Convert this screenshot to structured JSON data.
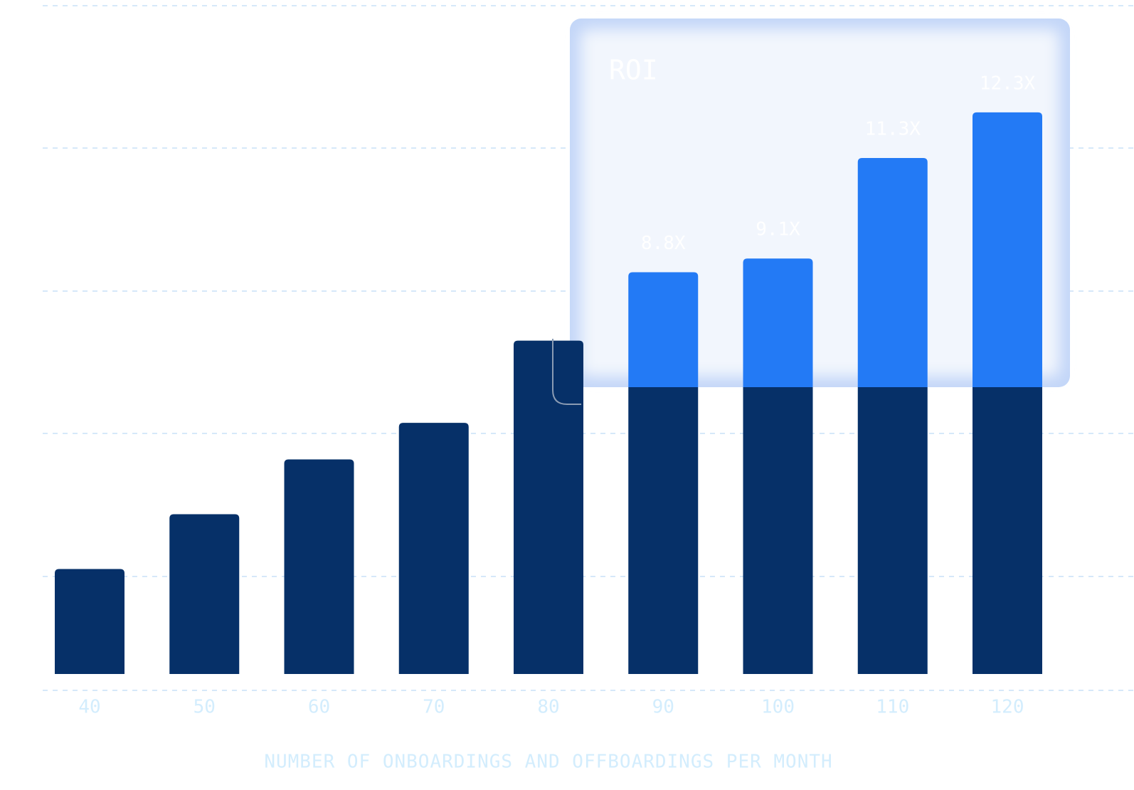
{
  "chart_data": {
    "type": "bar",
    "box_title": "ROI",
    "x_label": "NUMBER OF ONBOARDINGS AND OFFBOARDINGS PER MONTH",
    "categories": [
      "40",
      "50",
      "60",
      "70",
      "80",
      "90",
      "100",
      "110",
      "120"
    ],
    "values": [
      2.3,
      3.5,
      4.7,
      5.5,
      7.3,
      8.8,
      9.1,
      11.3,
      12.3
    ],
    "value_labels": [
      null,
      null,
      null,
      null,
      null,
      "8.8X",
      "9.1X",
      "11.3X",
      "12.3X"
    ],
    "color": "#063068",
    "highlight_color": "#237af5",
    "ylim": [
      0,
      13
    ]
  }
}
